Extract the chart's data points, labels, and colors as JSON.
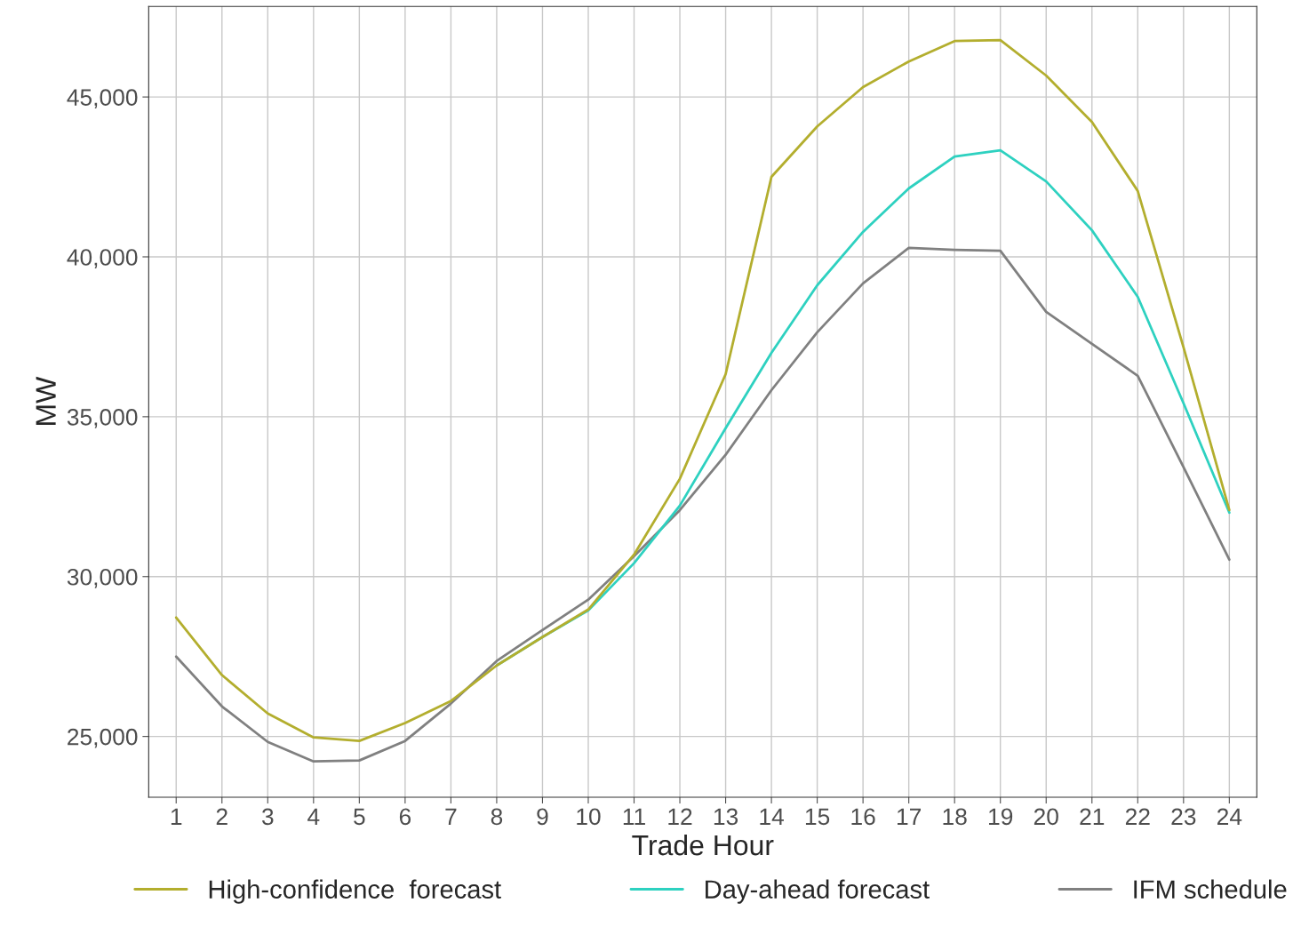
{
  "chart_data": {
    "type": "line",
    "xlabel": "Trade Hour",
    "ylabel": "MW",
    "categories": [
      "1",
      "2",
      "3",
      "4",
      "5",
      "6",
      "7",
      "8",
      "9",
      "10",
      "11",
      "12",
      "13",
      "14",
      "15",
      "16",
      "17",
      "18",
      "19",
      "20",
      "21",
      "22",
      "23",
      "24"
    ],
    "series": [
      {
        "name": "High-confidence  forecast",
        "color": "#b3ae2e",
        "values": [
          28720,
          26920,
          25720,
          24970,
          24860,
          25420,
          26110,
          27220,
          28110,
          28970,
          30690,
          33060,
          36330,
          42500,
          44080,
          45310,
          46110,
          46750,
          46780,
          45670,
          44220,
          42060,
          37170,
          32080
        ]
      },
      {
        "name": "Day-ahead forecast",
        "color": "#2ed1c0",
        "values": [
          null,
          null,
          null,
          null,
          null,
          null,
          null,
          27220,
          28110,
          28940,
          30420,
          32220,
          34640,
          37000,
          39110,
          40780,
          42140,
          43140,
          43330,
          42360,
          40830,
          38750,
          35420,
          32000
        ]
      },
      {
        "name": "IFM schedule",
        "color": "#808080",
        "values": [
          27500,
          25940,
          24830,
          24220,
          24250,
          24860,
          26030,
          27360,
          28330,
          29280,
          30640,
          32080,
          33810,
          35830,
          37640,
          39170,
          40280,
          40220,
          40190,
          38280,
          37280,
          36280,
          33420,
          30530
        ]
      }
    ],
    "ylim": [
      23100,
      47830
    ],
    "yticks": [
      {
        "value": 25000,
        "label": "25,000"
      },
      {
        "value": 30000,
        "label": "30,000"
      },
      {
        "value": 35000,
        "label": "35,000"
      },
      {
        "value": 40000,
        "label": "40,000"
      },
      {
        "value": 45000,
        "label": "45,000"
      }
    ],
    "grid": true,
    "legend": "bottom",
    "marker": "none",
    "line_style": "solid"
  }
}
